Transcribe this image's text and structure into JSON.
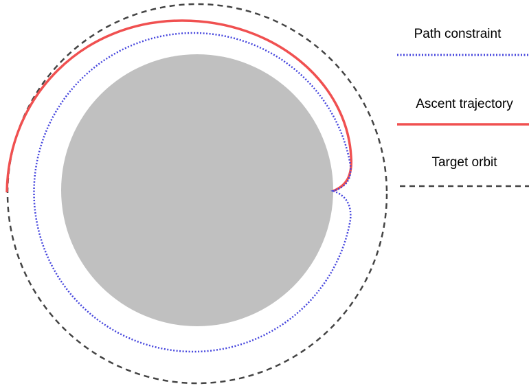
{
  "legend": [
    {
      "label": "Path constraint"
    },
    {
      "label": "Ascent trajectory"
    },
    {
      "label": "Target orbit"
    }
  ]
}
